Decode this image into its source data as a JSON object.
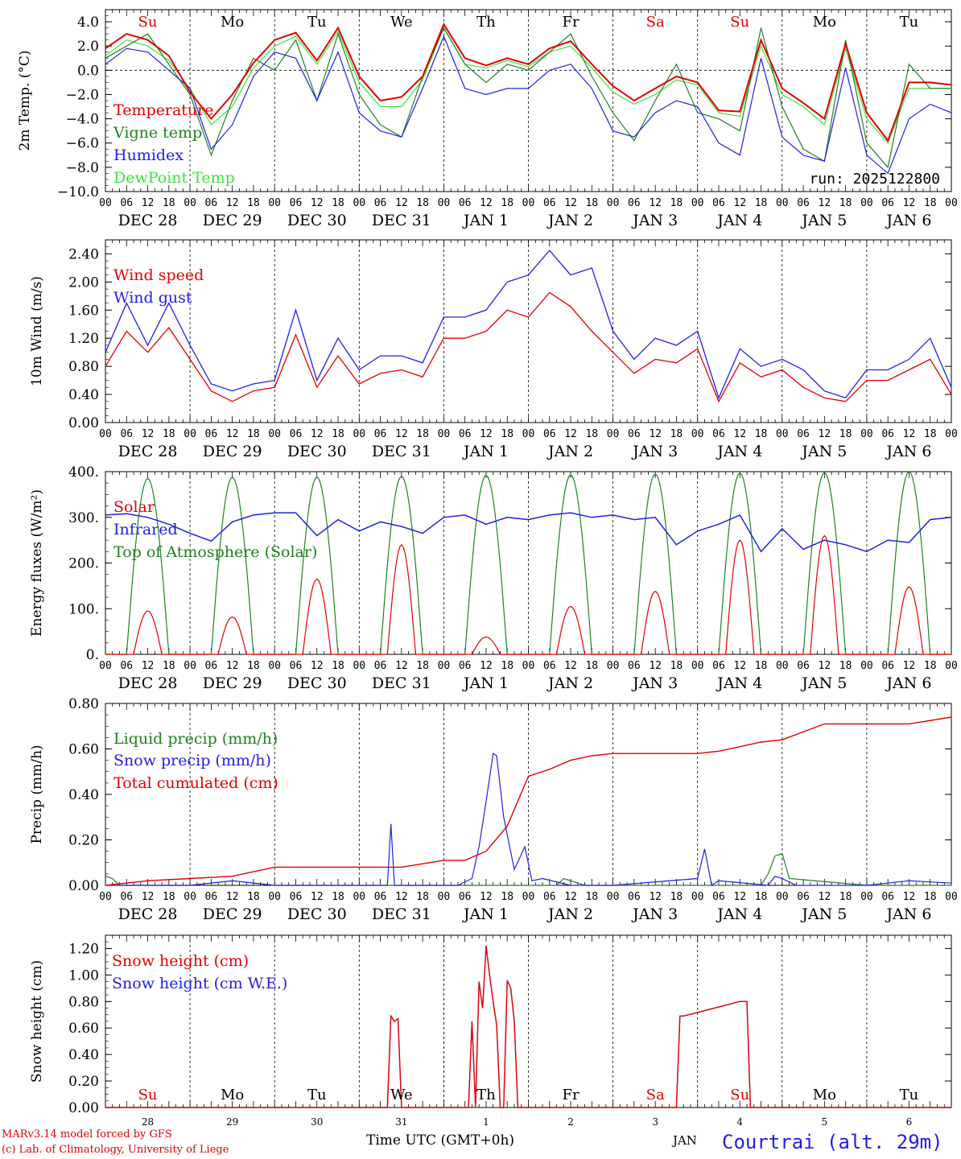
{
  "chart_data": [
    {
      "type": "line",
      "panel": "temperature",
      "ylabel": "2m Temp. (°C)",
      "ylim": [
        -10,
        5
      ],
      "yticks": [
        "4.0",
        "2.0",
        "0.0",
        "−2.0",
        "−4.0",
        "−6.0",
        "−8.0",
        "−10.0"
      ],
      "ytick_values": [
        4,
        2,
        0,
        -2,
        -4,
        -6,
        -8,
        -10
      ],
      "run_label": "run: 2025122800",
      "zero_line": true,
      "x_hours": [
        0,
        6,
        12,
        18,
        24,
        30,
        36,
        42,
        48,
        54,
        60,
        66,
        72,
        78,
        84,
        90,
        96,
        102,
        108,
        114,
        120,
        126,
        132,
        138,
        144,
        150,
        156,
        162,
        168,
        174,
        180,
        186,
        192,
        198,
        204,
        210,
        216,
        222,
        228,
        234,
        240
      ],
      "series": [
        {
          "name": "Temperature",
          "color": "#e00000",
          "values": [
            1.8,
            3.0,
            2.5,
            1.2,
            -1.8,
            -4.0,
            -2.0,
            0.6,
            2.5,
            3.1,
            0.8,
            3.5,
            -0.5,
            -2.5,
            -2.2,
            -0.5,
            3.8,
            1.0,
            0.4,
            1.0,
            0.5,
            1.8,
            2.4,
            0.5,
            -1.3,
            -2.5,
            -1.5,
            -0.5,
            -1.0,
            -3.3,
            -3.4,
            2.5,
            -1.5,
            -2.7,
            -4.0,
            2.2,
            -3.5,
            -5.8,
            -1.0,
            -1.0,
            -1.2
          ]
        },
        {
          "name": "Vigne temp",
          "color": "#208020",
          "values": [
            1.0,
            2.0,
            3.0,
            0.5,
            -2.0,
            -7.0,
            -2.5,
            1.0,
            0.0,
            2.5,
            -2.5,
            3.0,
            -2.0,
            -4.5,
            -5.5,
            -0.5,
            3.5,
            0.5,
            -1.0,
            0.5,
            0.0,
            1.5,
            3.0,
            -0.5,
            -3.5,
            -5.8,
            -2.5,
            0.5,
            -3.5,
            -4.0,
            -5.0,
            3.5,
            -3.0,
            -6.5,
            -7.5,
            2.5,
            -6.0,
            -8.0,
            0.5,
            -1.5,
            -1.5
          ]
        },
        {
          "name": "Humidex",
          "color": "#2020e0",
          "values": [
            0.5,
            1.8,
            1.5,
            0.0,
            -1.5,
            -6.5,
            -4.5,
            -0.5,
            1.5,
            1.0,
            -2.5,
            1.5,
            -3.5,
            -5.0,
            -5.5,
            -1.5,
            2.8,
            -1.5,
            -2.0,
            -1.5,
            -1.5,
            0.0,
            0.5,
            -1.5,
            -5.0,
            -5.5,
            -3.5,
            -2.5,
            -3.0,
            -6.0,
            -7.0,
            1.0,
            -5.5,
            -7.0,
            -7.5,
            0.2,
            -7.0,
            -8.5,
            -4.0,
            -2.8,
            -3.5
          ]
        },
        {
          "name": "DewPoint Temp",
          "color": "#40e040",
          "values": [
            1.2,
            2.5,
            2.0,
            0.8,
            -1.5,
            -4.5,
            -3.0,
            0.2,
            2.0,
            2.8,
            0.5,
            3.2,
            -1.0,
            -3.0,
            -3.0,
            -0.8,
            3.5,
            0.5,
            0.2,
            0.8,
            0.3,
            1.5,
            2.0,
            0.2,
            -1.8,
            -2.8,
            -2.0,
            -0.8,
            -1.2,
            -3.5,
            -3.8,
            2.0,
            -2.0,
            -3.0,
            -4.5,
            1.8,
            -4.0,
            -6.0,
            -1.5,
            -1.5,
            -1.5
          ]
        }
      ]
    },
    {
      "type": "line",
      "panel": "wind",
      "ylabel": "10m Wind (m/s)",
      "ylim": [
        0,
        2.6
      ],
      "yticks": [
        "2.40",
        "2.00",
        "1.60",
        "1.20",
        "0.80",
        "0.40",
        "0.00"
      ],
      "ytick_values": [
        2.4,
        2.0,
        1.6,
        1.2,
        0.8,
        0.4,
        0.0
      ],
      "x_hours": [
        0,
        6,
        12,
        18,
        24,
        30,
        36,
        42,
        48,
        54,
        60,
        66,
        72,
        78,
        84,
        90,
        96,
        102,
        108,
        114,
        120,
        126,
        132,
        138,
        144,
        150,
        156,
        162,
        168,
        174,
        180,
        186,
        192,
        198,
        204,
        210,
        216,
        222,
        228,
        234,
        240
      ],
      "series": [
        {
          "name": "Wind speed",
          "color": "#e00000",
          "values": [
            0.8,
            1.3,
            1.0,
            1.35,
            0.9,
            0.45,
            0.3,
            0.45,
            0.5,
            1.25,
            0.5,
            0.95,
            0.55,
            0.7,
            0.75,
            0.65,
            1.2,
            1.2,
            1.3,
            1.6,
            1.5,
            1.85,
            1.65,
            1.3,
            1.0,
            0.7,
            0.9,
            0.85,
            1.05,
            0.3,
            0.85,
            0.65,
            0.75,
            0.5,
            0.35,
            0.3,
            0.6,
            0.6,
            0.75,
            0.9,
            0.4
          ]
        },
        {
          "name": "Wind gust",
          "color": "#2020e0",
          "values": [
            1.0,
            1.7,
            1.1,
            1.7,
            1.1,
            0.55,
            0.45,
            0.55,
            0.6,
            1.6,
            0.6,
            1.2,
            0.75,
            0.95,
            0.95,
            0.85,
            1.5,
            1.5,
            1.6,
            2.0,
            2.1,
            2.45,
            2.1,
            2.2,
            1.3,
            0.9,
            1.2,
            1.1,
            1.3,
            0.35,
            1.05,
            0.8,
            0.9,
            0.75,
            0.45,
            0.35,
            0.75,
            0.75,
            0.9,
            1.2,
            0.5
          ]
        }
      ]
    },
    {
      "type": "line",
      "panel": "energy",
      "ylabel": "Energy fluxes (W/m²)",
      "ylim": [
        0,
        400
      ],
      "yticks": [
        "400.",
        "300.",
        "200.",
        "100.",
        "0."
      ],
      "ytick_values": [
        400,
        300,
        200,
        100,
        0
      ],
      "solar_peaks": [
        95,
        82,
        165,
        240,
        38,
        105,
        138,
        250,
        260,
        148
      ],
      "toa_peaks": [
        385,
        388,
        388,
        390,
        392,
        393,
        395,
        397,
        398,
        400
      ],
      "infrared_hours": [
        0,
        6,
        12,
        18,
        24,
        30,
        36,
        42,
        48,
        54,
        60,
        66,
        72,
        78,
        84,
        90,
        96,
        102,
        108,
        114,
        120,
        126,
        132,
        138,
        144,
        150,
        156,
        162,
        168,
        174,
        180,
        186,
        192,
        198,
        204,
        210,
        216,
        222,
        228,
        234,
        240
      ],
      "infrared_values": [
        305,
        308,
        300,
        285,
        265,
        248,
        290,
        305,
        310,
        310,
        260,
        295,
        270,
        290,
        280,
        265,
        300,
        305,
        285,
        300,
        295,
        305,
        310,
        300,
        305,
        295,
        300,
        240,
        270,
        285,
        305,
        225,
        275,
        230,
        250,
        240,
        225,
        250,
        245,
        295,
        300
      ],
      "series": [
        {
          "name": "Solar",
          "color": "#e00000"
        },
        {
          "name": "Infrared",
          "color": "#2020e0"
        },
        {
          "name": "Top of Atmosphere (Solar)",
          "color": "#208020"
        }
      ]
    },
    {
      "type": "line",
      "panel": "precip",
      "ylabel": "Precip (mm/h)",
      "ylim": [
        0,
        0.8
      ],
      "yticks": [
        "0.80",
        "0.60",
        "0.40",
        "0.20",
        "0.00"
      ],
      "ytick_values": [
        0.8,
        0.6,
        0.4,
        0.2,
        0.0
      ],
      "cumulated_hours": [
        0,
        12,
        24,
        36,
        48,
        72,
        84,
        96,
        102,
        108,
        114,
        120,
        126,
        132,
        138,
        144,
        156,
        168,
        174,
        180,
        186,
        192,
        204,
        216,
        228,
        240
      ],
      "cumulated_values": [
        0.0,
        0.02,
        0.03,
        0.04,
        0.08,
        0.08,
        0.08,
        0.11,
        0.11,
        0.15,
        0.26,
        0.48,
        0.51,
        0.55,
        0.57,
        0.58,
        0.58,
        0.58,
        0.59,
        0.61,
        0.63,
        0.64,
        0.71,
        0.71,
        0.71,
        0.74
      ],
      "snow_hours": [
        0,
        24,
        36,
        48,
        72,
        80,
        81,
        82,
        96,
        100,
        104,
        106,
        108,
        110,
        111,
        113,
        116,
        119,
        121,
        124,
        132,
        144,
        168,
        170,
        172,
        174,
        188,
        190,
        192,
        196,
        216,
        228,
        240
      ],
      "snow_values": [
        0,
        0,
        0.02,
        0,
        0,
        0,
        0.27,
        0,
        0,
        0,
        0.03,
        0.17,
        0.37,
        0.58,
        0.57,
        0.3,
        0.07,
        0.17,
        0.02,
        0.03,
        0,
        0,
        0.03,
        0.16,
        0,
        0.02,
        0,
        0.04,
        0.03,
        0,
        0,
        0.02,
        0.01
      ],
      "liquid_hours": [
        0,
        2,
        4,
        24,
        36,
        48,
        72,
        96,
        120,
        128,
        130,
        132,
        136,
        144,
        168,
        186,
        188,
        190,
        192,
        194,
        216,
        240
      ],
      "liquid_values": [
        0.04,
        0.03,
        0,
        0,
        0.02,
        0,
        0,
        0,
        0,
        0,
        0.03,
        0.02,
        0,
        0,
        0,
        0,
        0.05,
        0.13,
        0.14,
        0.03,
        0,
        0
      ],
      "series": [
        {
          "name": "Liquid precip (mm/h)",
          "color": "#208020"
        },
        {
          "name": "Snow precip (mm/h)",
          "color": "#2020e0"
        },
        {
          "name": "Total cumulated (cm)",
          "color": "#e00000"
        }
      ]
    },
    {
      "type": "line",
      "panel": "snow",
      "ylabel": "Snow height (cm)",
      "ylim": [
        0,
        1.3
      ],
      "yticks": [
        "1.20",
        "1.00",
        "0.80",
        "0.60",
        "0.40",
        "0.20",
        "0.00"
      ],
      "ytick_values": [
        1.2,
        1.0,
        0.8,
        0.6,
        0.4,
        0.2,
        0.0
      ],
      "snow_hours": [
        0,
        80,
        81,
        82,
        83,
        84,
        96,
        103,
        104,
        105,
        106,
        107,
        108,
        109,
        110,
        111,
        112,
        113,
        114,
        115,
        116,
        117,
        118,
        119,
        120,
        162,
        163,
        164,
        180,
        182,
        183,
        240
      ],
      "snow_cm_values": [
        0,
        0,
        0.69,
        0.65,
        0.67,
        0,
        0,
        0,
        0.65,
        0,
        0.95,
        0.75,
        1.22,
        1.0,
        0.8,
        0.62,
        0,
        0,
        0.96,
        0.9,
        0.65,
        0,
        0,
        0,
        0,
        0,
        0.69,
        0.69,
        0.8,
        0.8,
        0,
        0
      ],
      "series": [
        {
          "name": "Snow height (cm)",
          "color": "#e00000"
        },
        {
          "name": "Snow height (cm W.E.)",
          "color": "#2020e0"
        }
      ]
    }
  ],
  "x_axis": {
    "hour_labels": [
      "00",
      "06",
      "12",
      "18"
    ],
    "end_label": "00",
    "date_labels": [
      "DEC 28",
      "DEC 29",
      "DEC 30",
      "DEC 31",
      "JAN  1",
      "JAN  2",
      "JAN  3",
      "JAN  4",
      "JAN  5",
      "JAN  6"
    ],
    "weekdays": [
      "Su",
      "Mo",
      "Tu",
      "We",
      "Th",
      "Fr",
      "Sa",
      "Su",
      "Mo",
      "Tu"
    ],
    "weekday_colors": [
      "#e00000",
      "#000000",
      "#000000",
      "#000000",
      "#000000",
      "#000000",
      "#e00000",
      "#e00000",
      "#000000",
      "#000000"
    ],
    "day_numbers": [
      "28",
      "29",
      "30",
      "31",
      "1",
      "2",
      "3",
      "4",
      "5",
      "6"
    ],
    "month_label": "JAN",
    "title": "Time UTC (GMT+0h)"
  },
  "footer": {
    "line1": "MARv3.14 model forced by GFS",
    "line2": "(c) Lab. of Climatology, University of Liege",
    "station": "Courtrai (alt. 29m)"
  },
  "colors": {
    "red": "#e00000",
    "green": "#208020",
    "blue": "#2020e0",
    "lightgreen": "#40e040",
    "black": "#000000"
  }
}
